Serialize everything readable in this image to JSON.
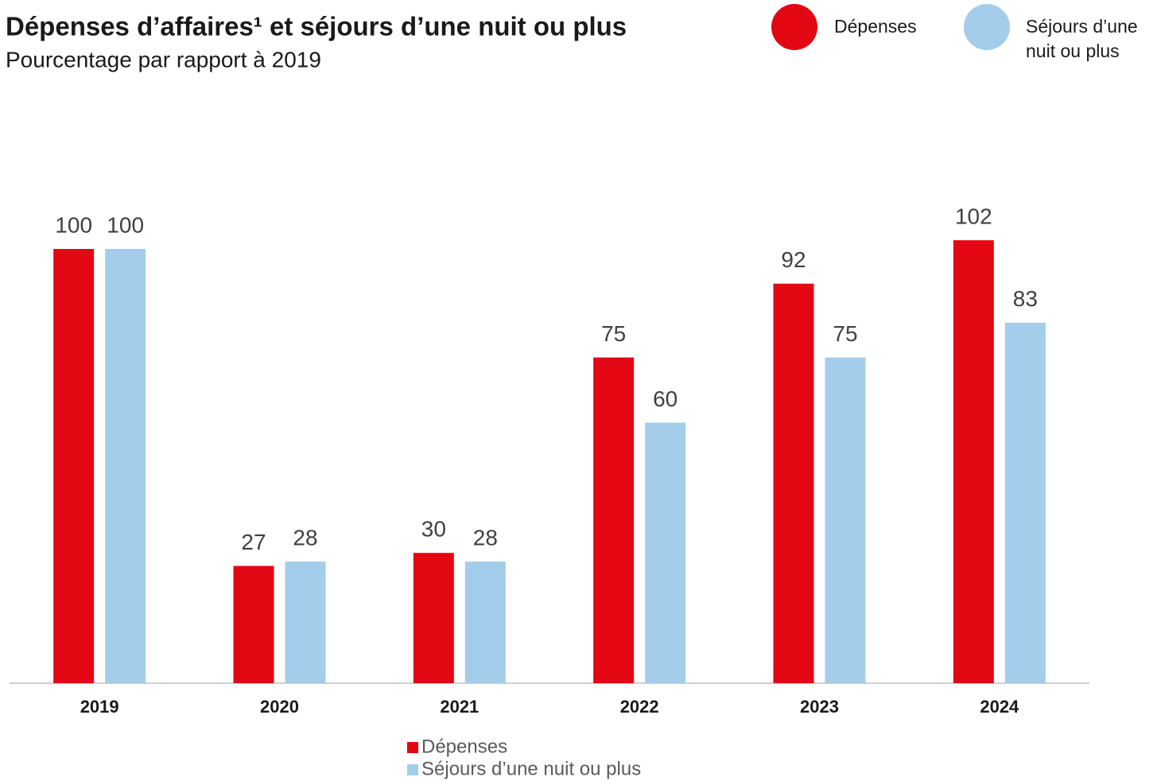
{
  "chart_data": {
    "type": "bar",
    "title": "Dépenses d’affaires¹ et séjours d’une nuit ou plus",
    "subtitle": "Pourcentage par rapport à 2019",
    "categories": [
      "2019",
      "2020",
      "2021",
      "2022",
      "2023",
      "2024"
    ],
    "series": [
      {
        "name": "Dépenses",
        "color": "#e30613",
        "values": [
          100,
          27,
          30,
          75,
          92,
          102
        ]
      },
      {
        "name": "Séjours d’une nuit ou plus",
        "color": "#a3cdea",
        "values": [
          100,
          28,
          28,
          60,
          75,
          83
        ]
      }
    ],
    "ylim": [
      0,
      110
    ]
  }
}
